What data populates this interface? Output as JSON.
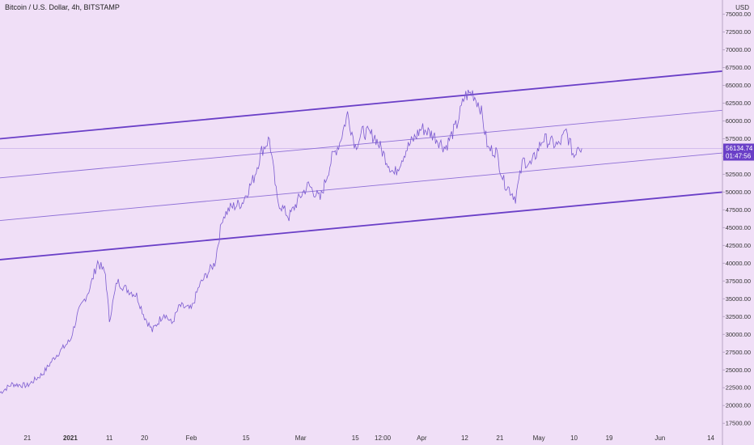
{
  "header": {
    "title": "Bitcoin / U.S. Dollar, 4h, BITSTAMP",
    "currency": "USD"
  },
  "colors": {
    "background": "#f0dff7",
    "price_line": "#7b5bd0",
    "channel_bold": "#6a3fc7",
    "channel_thin": "#8d6ed6",
    "badge": "#6a3fc7",
    "axis_border": "#b9a6c6"
  },
  "chart_data": {
    "type": "line",
    "title": "Bitcoin / U.S. Dollar, 4h, BITSTAMP",
    "ylabel": "USD",
    "ylim": [
      16500,
      77000
    ],
    "xlim": [
      "2020-12-14",
      "2021-06-17"
    ],
    "y_ticks": [
      17500,
      20000,
      22500,
      25000,
      27500,
      30000,
      32500,
      35000,
      37500,
      40000,
      42500,
      45000,
      47500,
      50000,
      52500,
      55000,
      57500,
      60000,
      62500,
      65000,
      67500,
      70000,
      72500,
      75000
    ],
    "y_tick_labels": [
      "17500.00",
      "20000.00",
      "22500.00",
      "25000.00",
      "27500.00",
      "30000.00",
      "32500.00",
      "35000.00",
      "37500.00",
      "40000.00",
      "42500.00",
      "45000.00",
      "47500.00",
      "50000.00",
      "52500.00",
      "55000.00",
      "57500.00",
      "60000.00",
      "62500.00",
      "65000.00",
      "67500.00",
      "70000.00",
      "72500.00",
      "75000.00"
    ],
    "x_ticks": [
      {
        "date": "2020-12-21",
        "label": "21",
        "bold": false
      },
      {
        "date": "2021-01-01",
        "label": "2021",
        "bold": true
      },
      {
        "date": "2021-01-11",
        "label": "11",
        "bold": false
      },
      {
        "date": "2021-01-20",
        "label": "20",
        "bold": false
      },
      {
        "date": "2021-02-01",
        "label": "Feb",
        "bold": false
      },
      {
        "date": "2021-02-15",
        "label": "15",
        "bold": false
      },
      {
        "date": "2021-03-01",
        "label": "Mar",
        "bold": false
      },
      {
        "date": "2021-03-15",
        "label": "15",
        "bold": false
      },
      {
        "date": "2021-03-22",
        "label": "12:00",
        "bold": false
      },
      {
        "date": "2021-04-01",
        "label": "Apr",
        "bold": false
      },
      {
        "date": "2021-04-12",
        "label": "12",
        "bold": false
      },
      {
        "date": "2021-04-21",
        "label": "21",
        "bold": false
      },
      {
        "date": "2021-05-01",
        "label": "May",
        "bold": false
      },
      {
        "date": "2021-05-10",
        "label": "10",
        "bold": false
      },
      {
        "date": "2021-05-19",
        "label": "19",
        "bold": false
      },
      {
        "date": "2021-06-01",
        "label": "Jun",
        "bold": false
      },
      {
        "date": "2021-06-14",
        "label": "14",
        "bold": false
      }
    ],
    "series": [
      {
        "x": [
          "2020-12-14",
          "2020-12-17",
          "2020-12-21",
          "2020-12-25",
          "2020-12-28",
          "2021-01-01",
          "2021-01-03",
          "2021-01-06",
          "2021-01-08",
          "2021-01-10",
          "2021-01-11",
          "2021-01-13",
          "2021-01-15",
          "2021-01-18",
          "2021-01-20",
          "2021-01-22",
          "2021-01-25",
          "2021-01-27",
          "2021-01-29",
          "2021-02-01",
          "2021-02-03",
          "2021-02-05",
          "2021-02-07",
          "2021-02-09",
          "2021-02-11",
          "2021-02-14",
          "2021-02-17",
          "2021-02-19",
          "2021-02-21",
          "2021-02-23",
          "2021-02-26",
          "2021-03-01",
          "2021-03-03",
          "2021-03-06",
          "2021-03-09",
          "2021-03-11",
          "2021-03-13",
          "2021-03-15",
          "2021-03-17",
          "2021-03-20",
          "2021-03-23",
          "2021-03-25",
          "2021-03-28",
          "2021-04-01",
          "2021-04-04",
          "2021-04-07",
          "2021-04-10",
          "2021-04-12",
          "2021-04-14",
          "2021-04-16",
          "2021-04-18",
          "2021-04-20",
          "2021-04-22",
          "2021-04-25",
          "2021-04-27",
          "2021-04-29",
          "2021-05-02",
          "2021-05-04",
          "2021-05-06",
          "2021-05-08",
          "2021-05-10",
          "2021-05-11",
          "2021-05-12"
        ],
        "values": [
          21800,
          23000,
          22800,
          24500,
          26800,
          29200,
          33000,
          36500,
          40200,
          38500,
          32000,
          37500,
          36500,
          35500,
          32500,
          30500,
          33000,
          31500,
          34000,
          33500,
          36800,
          38500,
          40000,
          46500,
          47800,
          48500,
          52000,
          55800,
          57500,
          48800,
          46500,
          49500,
          51000,
          49000,
          54800,
          57000,
          61000,
          56500,
          58500,
          57800,
          54500,
          52500,
          56000,
          59000,
          58000,
          56200,
          59500,
          63500,
          64000,
          62000,
          56000,
          55800,
          51500,
          49200,
          54500,
          53800,
          57500,
          57000,
          56500,
          58500,
          55000,
          56800,
          56134.74
        ]
      }
    ],
    "channel_lines": [
      {
        "style": "bold",
        "start": [
          "2020-12-14",
          57500
        ],
        "end": [
          "2021-06-17",
          67000
        ]
      },
      {
        "style": "thin",
        "start": [
          "2020-12-14",
          52000
        ],
        "end": [
          "2021-06-17",
          61500
        ]
      },
      {
        "style": "thin",
        "start": [
          "2020-12-14",
          46000
        ],
        "end": [
          "2021-06-17",
          55500
        ]
      },
      {
        "style": "bold",
        "start": [
          "2020-12-14",
          40500
        ],
        "end": [
          "2021-06-17",
          50000
        ]
      }
    ],
    "last_price": {
      "value": 56134.74,
      "label": "56134.74",
      "countdown": "01:47:56"
    }
  }
}
